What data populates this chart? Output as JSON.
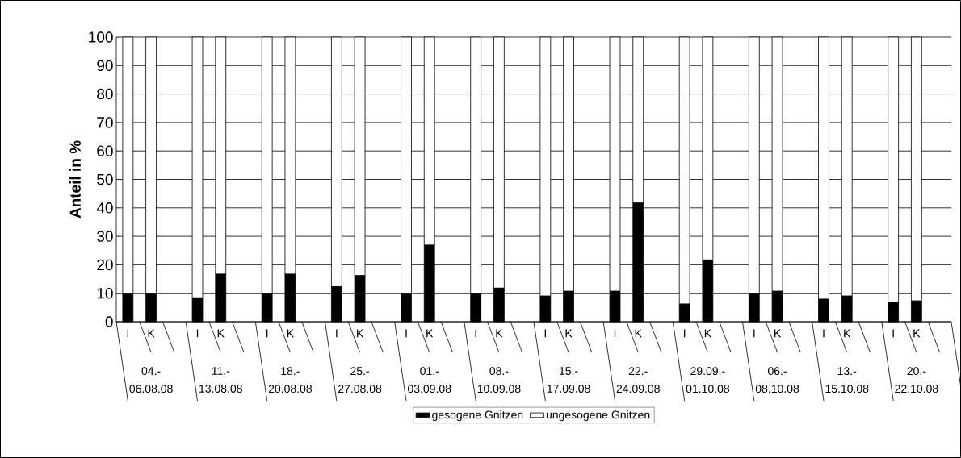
{
  "chart_data": {
    "type": "bar",
    "stacked": true,
    "ylabel": "Anteil in %",
    "categories": [
      "I",
      "K",
      null,
      "I",
      "K",
      null,
      "I",
      "K",
      null,
      "I",
      "K",
      null,
      "I",
      "K",
      null,
      "I",
      "K",
      null,
      "I",
      "K",
      null,
      "I",
      "K",
      null,
      "I",
      "K",
      null,
      "I",
      "K",
      null,
      "I",
      "K",
      null,
      "I",
      "K",
      null
    ],
    "series": [
      {
        "name": "gesogene Gnitzen",
        "color": "#000000",
        "values": [
          10,
          10,
          null,
          8.4,
          16.7,
          null,
          10,
          16.7,
          null,
          12.3,
          16.2,
          null,
          10,
          26.9,
          null,
          10,
          11.8,
          null,
          9,
          10.7,
          null,
          10.7,
          41.7,
          null,
          6.2,
          21.7,
          null,
          10,
          10.7,
          null,
          7.9,
          9,
          null,
          6.8,
          7.3,
          null
        ]
      },
      {
        "name": "ungesogene Gnitzen",
        "color": "#ffffff",
        "values": [
          90,
          90,
          null,
          91.6,
          83.3,
          null,
          90,
          83.3,
          null,
          87.7,
          83.8,
          null,
          90,
          73.1,
          null,
          90,
          88.2,
          null,
          91,
          89.3,
          null,
          89.3,
          58.3,
          null,
          93.8,
          78.3,
          null,
          90,
          89.3,
          null,
          92.1,
          91,
          null,
          93.2,
          92.7,
          null
        ]
      }
    ],
    "annotations": [
      "04.- 06.08.08",
      "11.- 13.08.08",
      "18.- 20.08.08",
      "25.- 27.08.08",
      "01.- 03.09.08",
      "08.- 10.09.08",
      "15.- 17.09.08",
      "22.- 24.09.08",
      "29.09.- 01.10.08",
      "06.- 08.10.08",
      "13.- 15.10.08",
      "20.- 22.10.08"
    ],
    "ylim": [
      0,
      100
    ],
    "yticks": [
      0,
      10,
      20,
      30,
      40,
      50,
      60,
      70,
      80,
      90,
      100
    ],
    "grid": "y",
    "legend": "bottom"
  }
}
